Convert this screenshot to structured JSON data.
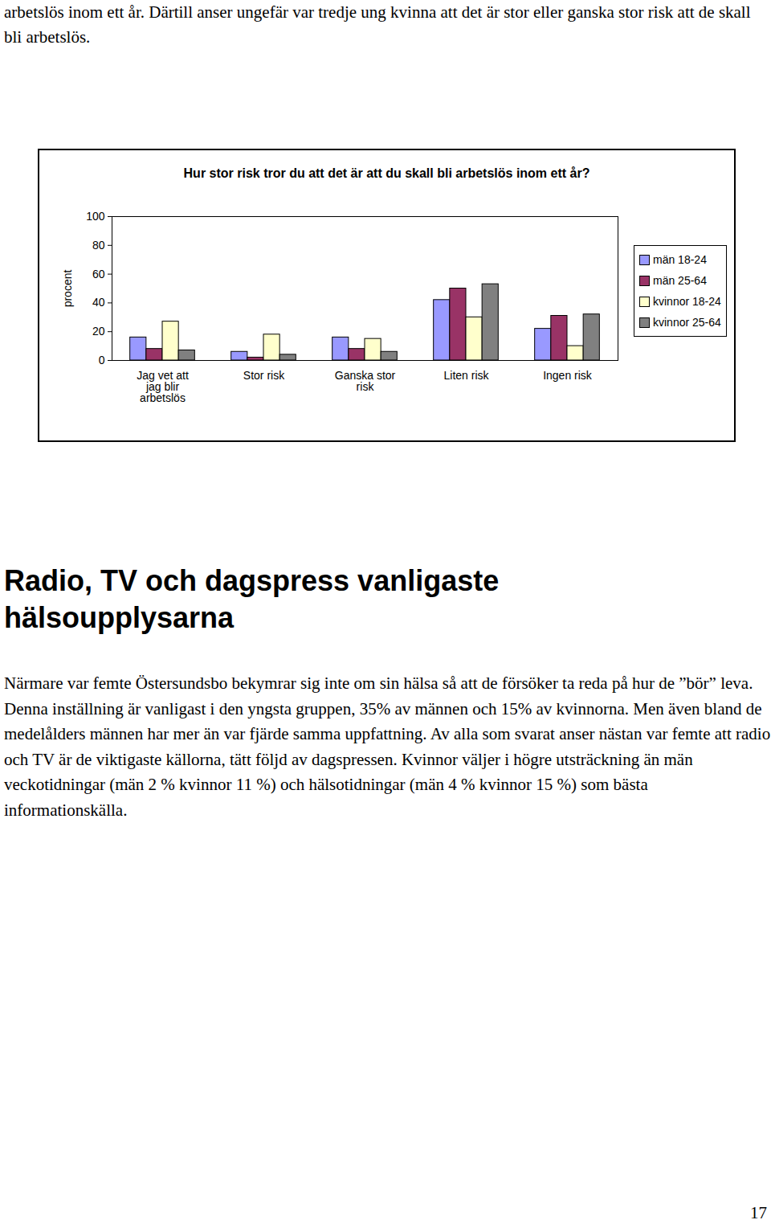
{
  "top_text": "arbetslös inom ett år. Därtill anser ungefär var tredje ung kvinna att det är stor eller ganska stor risk att de skall bli arbetslös.",
  "chart_data": {
    "type": "bar",
    "title": "Hur stor risk tror du att det är att du skall bli arbetslös inom ett år?",
    "y_label": "procent",
    "categories": [
      "Jag vet att jag blir arbetslös",
      "Stor risk",
      "Ganska stor risk",
      "Liten risk",
      "Ingen risk"
    ],
    "series": [
      {
        "name": "män 18-24",
        "color": "#9999FF",
        "values": [
          16,
          6,
          16,
          42,
          22
        ]
      },
      {
        "name": "män 25-64",
        "color": "#993366",
        "values": [
          8,
          2,
          8,
          50,
          31
        ]
      },
      {
        "name": "kvinnor 18-24",
        "color": "#FFFFCC",
        "values": [
          27,
          18,
          15,
          30,
          10
        ]
      },
      {
        "name": "kvinnor 25-64",
        "color": "#808080",
        "values": [
          7,
          4,
          6,
          53,
          32
        ]
      }
    ],
    "ylim": [
      0,
      100
    ],
    "yticks": [
      0,
      20,
      40,
      60,
      80,
      100
    ],
    "grid": false,
    "legend": "right"
  },
  "heading": "Radio, TV och dagspress vanligaste hälsoupplysarna",
  "paragraph": "Närmare var femte Östersundsbo bekymrar sig inte om sin hälsa så att de försöker ta reda på hur de ”bör” leva. Denna inställning är vanligast i den yngsta gruppen, 35% av männen och 15% av kvinnorna. Men även bland de medelålders männen har mer än var fjärde samma uppfattning. Av alla som svarat anser nästan var femte att radio och TV är de viktigaste källorna, tätt följd av dagspressen. Kvinnor väljer i högre utsträckning än män veckotidningar (män 2 % kvinnor 11 %) och hälsotidningar (män 4 % kvinnor 15 %) som bästa informationskälla.",
  "page_number": "17"
}
